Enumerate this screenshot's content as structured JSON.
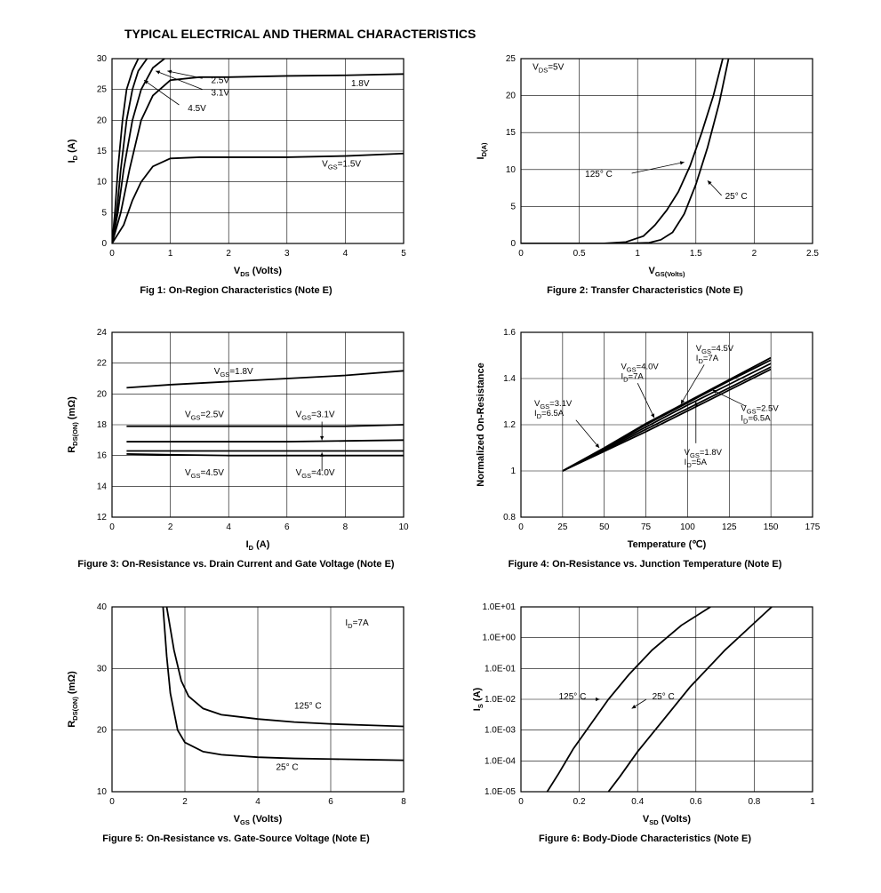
{
  "page_title": "TYPICAL ELECTRICAL AND THERMAL CHARACTERISTICS",
  "layout": {
    "rows": 3,
    "cols": 2,
    "bg": "#ffffff",
    "stroke": "#000000"
  },
  "fig1": {
    "type": "line",
    "caption": "Fig 1: On-Region Characteristics (Note E)",
    "xlabel": "V_DS (Volts)",
    "ylabel": "I_D (A)",
    "xlim": [
      0,
      5
    ],
    "ylim": [
      0,
      30
    ],
    "xticks": [
      0,
      1,
      2,
      3,
      4,
      5
    ],
    "yticks": [
      0,
      5,
      10,
      15,
      20,
      25,
      30
    ],
    "grid": true,
    "stroke_width": 1.8,
    "series": [
      {
        "name": "1.5V",
        "label": "V_GS=1.5V",
        "label_at": [
          3.6,
          12.5
        ],
        "leader": null,
        "pts": [
          [
            0,
            0
          ],
          [
            0.2,
            3
          ],
          [
            0.35,
            7
          ],
          [
            0.5,
            10
          ],
          [
            0.7,
            12.5
          ],
          [
            1.0,
            13.8
          ],
          [
            1.5,
            14
          ],
          [
            2,
            14
          ],
          [
            3,
            14
          ],
          [
            4,
            14.2
          ],
          [
            5,
            14.6
          ]
        ]
      },
      {
        "name": "1.8V",
        "label": "1.8V",
        "label_at": [
          4.1,
          25.5
        ],
        "leader": null,
        "pts": [
          [
            0,
            0
          ],
          [
            0.15,
            5
          ],
          [
            0.3,
            12
          ],
          [
            0.5,
            20
          ],
          [
            0.7,
            24
          ],
          [
            1.0,
            26.5
          ],
          [
            1.5,
            27
          ],
          [
            2,
            27
          ],
          [
            3,
            27.2
          ],
          [
            4,
            27.3
          ],
          [
            5,
            27.5
          ]
        ]
      },
      {
        "name": "2.5V",
        "label": "2.5V",
        "label_at": [
          1.7,
          26
        ],
        "leader": [
          [
            1.55,
            26.8
          ],
          [
            0.95,
            28
          ]
        ],
        "pts": [
          [
            0,
            0
          ],
          [
            0.1,
            5
          ],
          [
            0.2,
            12
          ],
          [
            0.35,
            20
          ],
          [
            0.5,
            25
          ],
          [
            0.7,
            28.5
          ],
          [
            0.9,
            30
          ]
        ]
      },
      {
        "name": "3.1V",
        "label": "3.1V",
        "label_at": [
          1.7,
          24
        ],
        "leader": [
          [
            1.55,
            25
          ],
          [
            0.75,
            28
          ]
        ],
        "pts": [
          [
            0,
            0
          ],
          [
            0.08,
            5
          ],
          [
            0.15,
            12
          ],
          [
            0.25,
            20
          ],
          [
            0.35,
            25
          ],
          [
            0.45,
            28
          ],
          [
            0.6,
            30
          ]
        ]
      },
      {
        "name": "4.5V",
        "label": "4.5V",
        "label_at": [
          1.3,
          21.5
        ],
        "leader": [
          [
            1.15,
            22.5
          ],
          [
            0.55,
            26.5
          ]
        ],
        "pts": [
          [
            0,
            0
          ],
          [
            0.05,
            5
          ],
          [
            0.1,
            12
          ],
          [
            0.18,
            20
          ],
          [
            0.25,
            25
          ],
          [
            0.35,
            28
          ],
          [
            0.45,
            30
          ]
        ]
      }
    ]
  },
  "fig2": {
    "type": "line",
    "caption": "Figure 2: Transfer Characteristics (Note E)",
    "xlabel": "V_GS(Volts)",
    "ylabel": "I_D(A)",
    "xlim": [
      0,
      2.5
    ],
    "ylim": [
      0,
      25
    ],
    "xticks": [
      0,
      0.5,
      1,
      1.5,
      2,
      2.5
    ],
    "yticks": [
      0,
      5,
      10,
      15,
      20,
      25
    ],
    "grid": true,
    "annot_left": {
      "text": "V_DS=5V",
      "at": [
        0.1,
        23.5
      ]
    },
    "series": [
      {
        "name": "25C",
        "label": "25° C",
        "label_at": [
          1.75,
          6
        ],
        "leader": [
          [
            1.72,
            6.5
          ],
          [
            1.6,
            8.5
          ]
        ],
        "pts": [
          [
            0,
            0
          ],
          [
            0.9,
            0
          ],
          [
            1.1,
            0.1
          ],
          [
            1.2,
            0.5
          ],
          [
            1.3,
            1.5
          ],
          [
            1.4,
            4
          ],
          [
            1.5,
            8
          ],
          [
            1.6,
            13
          ],
          [
            1.7,
            19
          ],
          [
            1.78,
            25
          ]
        ]
      },
      {
        "name": "125C",
        "label": "125° C",
        "label_at": [
          0.55,
          9
        ],
        "leader": [
          [
            0.95,
            9.5
          ],
          [
            1.4,
            11
          ]
        ],
        "pts": [
          [
            0,
            0
          ],
          [
            0.7,
            0
          ],
          [
            0.9,
            0.2
          ],
          [
            1.05,
            1
          ],
          [
            1.15,
            2.5
          ],
          [
            1.25,
            4.5
          ],
          [
            1.35,
            7
          ],
          [
            1.45,
            10.5
          ],
          [
            1.55,
            15
          ],
          [
            1.65,
            20
          ],
          [
            1.73,
            25
          ]
        ]
      }
    ]
  },
  "fig3": {
    "type": "line",
    "caption": "Figure 3: On-Resistance vs. Drain Current and Gate Voltage (Note E)",
    "xlabel": "I_D (A)",
    "ylabel": "R_DS(ON) (mΩ)",
    "xlim": [
      0,
      10
    ],
    "ylim": [
      12,
      24
    ],
    "xticks": [
      0,
      2,
      4,
      6,
      8,
      10
    ],
    "yticks": [
      12,
      14,
      16,
      18,
      20,
      22,
      24
    ],
    "grid": true,
    "series": [
      {
        "name": "1.8V",
        "label": "V_GS=1.8V",
        "label_at": [
          3.5,
          21.3
        ],
        "leader": null,
        "pts": [
          [
            0.5,
            20.4
          ],
          [
            2,
            20.6
          ],
          [
            4,
            20.8
          ],
          [
            6,
            21.0
          ],
          [
            8,
            21.2
          ],
          [
            10,
            21.5
          ]
        ]
      },
      {
        "name": "2.5V",
        "label": "V_GS=2.5V",
        "label_at": [
          2.5,
          18.5
        ],
        "leader": null,
        "pts": [
          [
            0.5,
            17.9
          ],
          [
            2,
            17.9
          ],
          [
            4,
            17.9
          ],
          [
            6,
            17.9
          ],
          [
            8,
            17.9
          ],
          [
            10,
            18.0
          ]
        ]
      },
      {
        "name": "3.1V",
        "label": "V_GS=3.1V",
        "label_at": [
          6.3,
          18.5
        ],
        "leader": [
          [
            7.2,
            18.2
          ],
          [
            7.2,
            17.0
          ]
        ],
        "pts": [
          [
            0.5,
            16.9
          ],
          [
            2,
            16.9
          ],
          [
            4,
            16.9
          ],
          [
            6,
            16.9
          ],
          [
            8,
            16.95
          ],
          [
            10,
            17.0
          ]
        ]
      },
      {
        "name": "4.0V",
        "label": "V_GS=4.0V",
        "label_at": [
          6.3,
          14.7
        ],
        "leader": [
          [
            7.2,
            15.0
          ],
          [
            7.2,
            16.2
          ]
        ],
        "pts": [
          [
            0.5,
            16.3
          ],
          [
            2,
            16.3
          ],
          [
            4,
            16.3
          ],
          [
            6,
            16.3
          ],
          [
            8,
            16.3
          ],
          [
            10,
            16.3
          ]
        ]
      },
      {
        "name": "4.5V",
        "label": "V_GS=4.5V",
        "label_at": [
          2.5,
          14.7
        ],
        "leader": null,
        "pts": [
          [
            0.5,
            16.1
          ],
          [
            2,
            16.05
          ],
          [
            4,
            16.0
          ],
          [
            6,
            16.0
          ],
          [
            8,
            16.0
          ],
          [
            10,
            16.0
          ]
        ]
      }
    ]
  },
  "fig4": {
    "type": "line",
    "caption": "Figure 4: On-Resistance vs. Junction Temperature (Note E)",
    "xlabel": "Temperature (℃)",
    "ylabel": "Normalized On-Resistance",
    "xlim": [
      0,
      175
    ],
    "ylim": [
      0.8,
      1.6
    ],
    "xticks": [
      0,
      25,
      50,
      75,
      100,
      125,
      150,
      175
    ],
    "yticks": [
      0.8,
      1.0,
      1.2,
      1.4,
      1.6
    ],
    "grid": true,
    "annots": [
      {
        "text": "V_GS=4.5V\nI_D=7A",
        "at": [
          105,
          1.52
        ],
        "leader": [
          [
            110,
            1.46
          ],
          [
            96,
            1.29
          ]
        ]
      },
      {
        "text": "V_GS=4.0V\nI_D=7A",
        "at": [
          60,
          1.44
        ],
        "leader": [
          [
            70,
            1.38
          ],
          [
            80,
            1.23
          ]
        ]
      },
      {
        "text": "V_GS=3.1V\nI_D=6.5A",
        "at": [
          8,
          1.28
        ],
        "leader": [
          [
            33,
            1.22
          ],
          [
            47,
            1.1
          ]
        ]
      },
      {
        "text": "V_GS=2.5V\nI_D=6.5A",
        "at": [
          132,
          1.26
        ],
        "leader": [
          [
            135,
            1.28
          ],
          [
            115,
            1.35
          ]
        ]
      },
      {
        "text": "V_GS=1.8V\nI_D=5A",
        "at": [
          98,
          1.07
        ],
        "leader": [
          [
            105,
            1.12
          ],
          [
            105,
            1.3
          ]
        ]
      }
    ],
    "series": [
      {
        "name": "4.5V",
        "pts": [
          [
            25,
            1.0
          ],
          [
            50,
            1.085
          ],
          [
            75,
            1.17
          ],
          [
            100,
            1.26
          ],
          [
            125,
            1.35
          ],
          [
            150,
            1.44
          ]
        ]
      },
      {
        "name": "4.0V",
        "pts": [
          [
            25,
            1.0
          ],
          [
            50,
            1.09
          ],
          [
            75,
            1.18
          ],
          [
            100,
            1.27
          ],
          [
            125,
            1.36
          ],
          [
            150,
            1.45
          ]
        ]
      },
      {
        "name": "3.1V",
        "pts": [
          [
            25,
            1.0
          ],
          [
            50,
            1.095
          ],
          [
            75,
            1.19
          ],
          [
            100,
            1.285
          ],
          [
            125,
            1.375
          ],
          [
            150,
            1.465
          ]
        ]
      },
      {
        "name": "2.5V",
        "pts": [
          [
            25,
            1.0
          ],
          [
            50,
            1.098
          ],
          [
            75,
            1.2
          ],
          [
            100,
            1.295
          ],
          [
            125,
            1.39
          ],
          [
            150,
            1.48
          ]
        ]
      },
      {
        "name": "1.8V",
        "pts": [
          [
            25,
            1.0
          ],
          [
            50,
            1.1
          ],
          [
            75,
            1.205
          ],
          [
            100,
            1.3
          ],
          [
            125,
            1.395
          ],
          [
            150,
            1.49
          ]
        ]
      }
    ]
  },
  "fig5": {
    "type": "line",
    "caption": "Figure 5: On-Resistance vs. Gate-Source Voltage (Note E)",
    "xlabel": "V_GS (Volts)",
    "ylabel": "R_DS(ON) (mΩ)",
    "xlim": [
      0,
      8
    ],
    "ylim": [
      10,
      40
    ],
    "xticks": [
      0,
      2,
      4,
      6,
      8
    ],
    "yticks": [
      10,
      20,
      30,
      40
    ],
    "grid": true,
    "annot_right": {
      "text": "I_D=7A",
      "at": [
        6.4,
        37
      ]
    },
    "series": [
      {
        "name": "25C",
        "label": "25° C",
        "label_at": [
          4.5,
          13.5
        ],
        "leader": null,
        "pts": [
          [
            1.4,
            40
          ],
          [
            1.5,
            32
          ],
          [
            1.6,
            26
          ],
          [
            1.8,
            20
          ],
          [
            2.0,
            18
          ],
          [
            2.5,
            16.5
          ],
          [
            3,
            16
          ],
          [
            4,
            15.6
          ],
          [
            5,
            15.4
          ],
          [
            6,
            15.3
          ],
          [
            7,
            15.2
          ],
          [
            8,
            15.1
          ]
        ]
      },
      {
        "name": "125C",
        "label": "125° C",
        "label_at": [
          5.0,
          23.5
        ],
        "leader": null,
        "pts": [
          [
            1.5,
            40
          ],
          [
            1.7,
            33
          ],
          [
            1.9,
            28
          ],
          [
            2.1,
            25.5
          ],
          [
            2.5,
            23.5
          ],
          [
            3,
            22.5
          ],
          [
            4,
            21.8
          ],
          [
            5,
            21.3
          ],
          [
            6,
            21.0
          ],
          [
            7,
            20.8
          ],
          [
            8,
            20.6
          ]
        ]
      }
    ]
  },
  "fig6": {
    "type": "line-log",
    "caption": "Figure 6: Body-Diode Characteristics (Note E)",
    "xlabel": "V_SD (Volts)",
    "ylabel": "I_S (A)",
    "xlim": [
      0,
      1.0
    ],
    "ylim_exp": [
      -5,
      1
    ],
    "xticks": [
      0.0,
      0.2,
      0.4,
      0.6,
      0.8,
      1.0
    ],
    "ytick_labels": [
      "1.0E-05",
      "1.0E-04",
      "1.0E-03",
      "1.0E-02",
      "1.0E-01",
      "1.0E+00",
      "1.0E+01"
    ],
    "grid": true,
    "series": [
      {
        "name": "25C",
        "label": "25° C",
        "label_at": [
          0.45,
          -2.0
        ],
        "leader": [
          [
            0.43,
            -2.0
          ],
          [
            0.38,
            -2.3
          ]
        ],
        "pts_exp": [
          [
            0.3,
            -5
          ],
          [
            0.34,
            -4.5
          ],
          [
            0.4,
            -3.7
          ],
          [
            0.46,
            -3.0
          ],
          [
            0.52,
            -2.3
          ],
          [
            0.58,
            -1.6
          ],
          [
            0.64,
            -1.0
          ],
          [
            0.7,
            -0.4
          ],
          [
            0.78,
            0.3
          ],
          [
            0.86,
            1.0
          ]
        ]
      },
      {
        "name": "125C",
        "label": "125° C",
        "label_at": [
          0.13,
          -2.0
        ],
        "leader": [
          [
            0.21,
            -2.0
          ],
          [
            0.27,
            -2.0
          ]
        ],
        "pts_exp": [
          [
            0.09,
            -5
          ],
          [
            0.13,
            -4.4
          ],
          [
            0.18,
            -3.6
          ],
          [
            0.24,
            -2.8
          ],
          [
            0.3,
            -2.0
          ],
          [
            0.37,
            -1.2
          ],
          [
            0.45,
            -0.4
          ],
          [
            0.55,
            0.4
          ],
          [
            0.65,
            1.0
          ]
        ]
      }
    ]
  }
}
